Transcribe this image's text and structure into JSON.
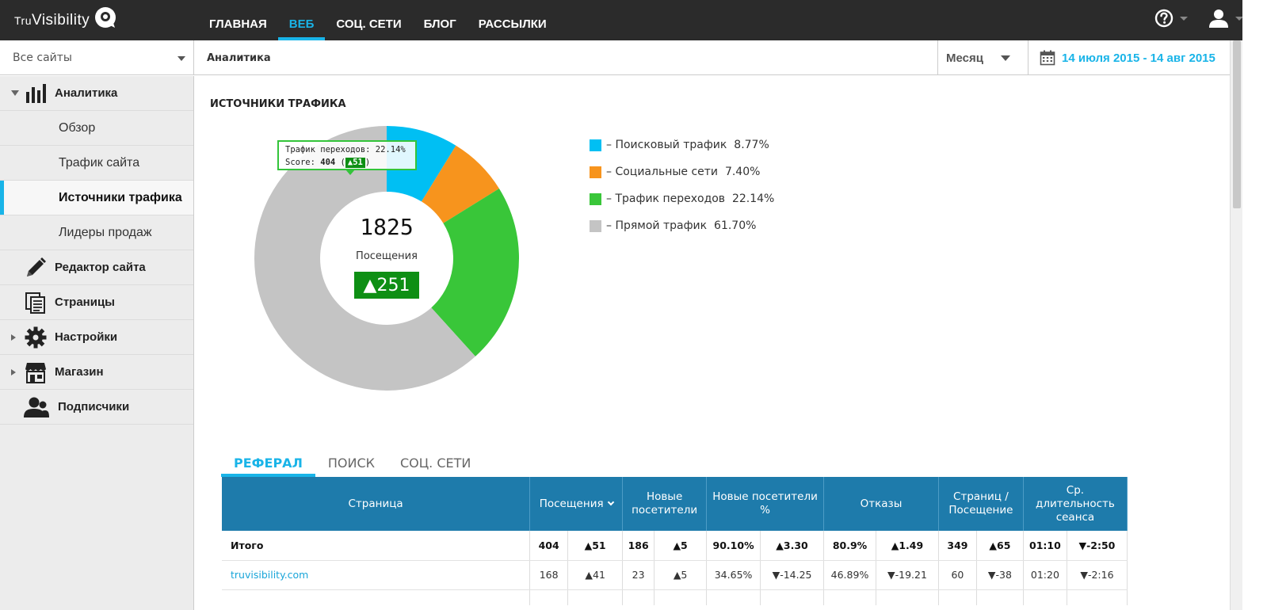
{
  "header": {
    "logo_prefix": "Tru",
    "logo_main": "Visibility",
    "nav": [
      {
        "label": "ГЛАВНАЯ",
        "active": false
      },
      {
        "label": "ВЕБ",
        "active": true
      },
      {
        "label": "СОЦ. СЕТИ",
        "active": false
      },
      {
        "label": "БЛОГ",
        "active": false
      },
      {
        "label": "РАССЫЛКИ",
        "active": false
      }
    ],
    "icons": [
      "help-icon",
      "user-icon"
    ]
  },
  "subbar": {
    "site_select": "Все сайты",
    "breadcrumb": "Аналитика",
    "period": "Месяц",
    "date_range": "14 июля 2015 - 14 авг 2015"
  },
  "sidebar": {
    "sections": [
      {
        "label": "Аналитика",
        "icon": "bar-chart-icon",
        "expanded": true
      },
      {
        "label": "Редактор сайта",
        "icon": "pencil-icon"
      },
      {
        "label": "Страницы",
        "icon": "pages-icon"
      },
      {
        "label": "Настройки",
        "icon": "gear-icon",
        "collapsed": true
      },
      {
        "label": "Магазин",
        "icon": "store-icon",
        "collapsed": true
      },
      {
        "label": "Подписчики",
        "icon": "subscribers-icon"
      }
    ],
    "analytics_items": [
      {
        "label": "Обзор"
      },
      {
        "label": "Трафик сайта"
      },
      {
        "label": "Источники трафика",
        "active": true
      },
      {
        "label": "Лидеры продаж"
      }
    ]
  },
  "main": {
    "section_title": "ИСТОЧНИКИ ТРАФИКА",
    "center_total": "1825",
    "center_label": "Посещения",
    "center_delta": "▲251",
    "tooltip": {
      "line1": "Трафик переходов: 22.14%",
      "score_label": "Score:",
      "score_value": "404",
      "score_delta": "▲51"
    },
    "legend": [
      {
        "label": "Поисковый трафик",
        "value": "8.77%",
        "color": "#00bff3"
      },
      {
        "label": "Социальные сети",
        "value": "7.40%",
        "color": "#f7941d"
      },
      {
        "label": "Трафик переходов",
        "value": "22.14%",
        "color": "#39c639"
      },
      {
        "label": "Прямой трафик",
        "value": "61.70%",
        "color": "#c4c4c4"
      }
    ],
    "tabs": [
      {
        "label": "РЕФЕРАЛ",
        "active": true
      },
      {
        "label": "ПОИСК"
      },
      {
        "label": "СОЦ. СЕТИ"
      }
    ],
    "table": {
      "headers": {
        "page": "Страница",
        "visits": "Посещения",
        "new_visitors": "Новые посетители",
        "new_visitors_pct": "Новые посетители %",
        "bounces": "Отказы",
        "pages_per_visit": "Страниц / Посещение",
        "avg_duration": "Ср. длительность сеанса"
      },
      "total": {
        "page": "Итого",
        "visits": "404",
        "visits_d": "▲51",
        "new": "186",
        "new_d": "▲5",
        "new_pct": "90.10%",
        "new_pct_d": "▲3.30",
        "bounce": "80.9%",
        "bounce_d": "▲1.49",
        "ppv": "349",
        "ppv_d": "▲65",
        "dur": "01:10",
        "dur_d": "▼-2:50"
      },
      "rows": [
        {
          "page": "truvisibility.com",
          "visits": "168",
          "visits_d": "▲41",
          "new": "23",
          "new_d": "▲5",
          "new_pct": "34.65%",
          "new_pct_d": "▼-14.25",
          "bounce": "46.89%",
          "bounce_d": "▼-19.21",
          "ppv": "60",
          "ppv_d": "▼-38",
          "dur": "01:20",
          "dur_d": "▼-2:16"
        }
      ]
    }
  },
  "chart_data": {
    "type": "pie",
    "categories": [
      "Поисковый трафик",
      "Социальные сети",
      "Трафик переходов",
      "Прямой трафик"
    ],
    "values": [
      8.77,
      7.4,
      22.14,
      61.7
    ],
    "colors": [
      "#00bff3",
      "#f7941d",
      "#39c639",
      "#c4c4c4"
    ],
    "donut": true,
    "title": "ИСТОЧНИКИ ТРАФИКА",
    "legend": "right"
  }
}
